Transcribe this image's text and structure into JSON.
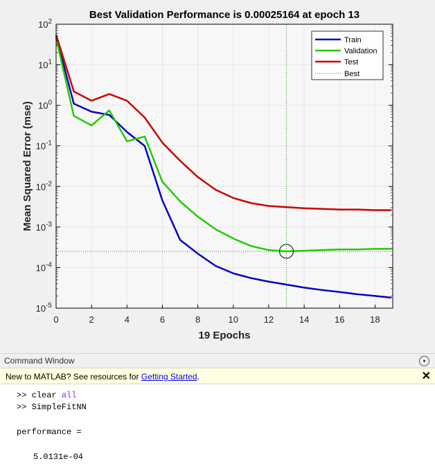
{
  "chart_data": {
    "type": "line",
    "title": "Best Validation Performance is 0.00025164 at epoch 13",
    "xlabel": "19 Epochs",
    "ylabel": "Mean Squared Error  (mse)",
    "xlim": [
      0,
      19
    ],
    "ylim": [
      1e-05,
      100
    ],
    "yscale": "log",
    "xticks": [
      0,
      2,
      4,
      6,
      8,
      10,
      12,
      14,
      16,
      18
    ],
    "yticks": [
      {
        "value": 100,
        "base": "10",
        "exp": "2"
      },
      {
        "value": 10,
        "base": "10",
        "exp": "1"
      },
      {
        "value": 1,
        "base": "10",
        "exp": "0"
      },
      {
        "value": 0.1,
        "base": "10",
        "exp": "-1"
      },
      {
        "value": 0.01,
        "base": "10",
        "exp": "-2"
      },
      {
        "value": 0.001,
        "base": "10",
        "exp": "-3"
      },
      {
        "value": 0.0001,
        "base": "10",
        "exp": "-4"
      },
      {
        "value": 1e-05,
        "base": "10",
        "exp": "-5"
      }
    ],
    "legend_position": "top-right",
    "x": [
      0,
      1,
      2,
      3,
      4,
      5,
      6,
      7,
      8,
      9,
      10,
      11,
      12,
      13,
      14,
      15,
      16,
      17,
      18,
      19
    ],
    "series": [
      {
        "name": "Train",
        "color": "#0000cc",
        "values": [
          50,
          1.1,
          0.7,
          0.58,
          0.22,
          0.1,
          0.0045,
          0.00048,
          0.00022,
          0.00011,
          7.2e-05,
          5.5e-05,
          4.5e-05,
          3.8e-05,
          3.2e-05,
          2.8e-05,
          2.5e-05,
          2.2e-05,
          2e-05,
          1.8e-05
        ]
      },
      {
        "name": "Validation",
        "color": "#22cc00",
        "values": [
          45,
          0.55,
          0.32,
          0.75,
          0.13,
          0.17,
          0.013,
          0.0043,
          0.0018,
          0.00088,
          0.00052,
          0.00034,
          0.00027,
          0.00025164,
          0.00026,
          0.00027,
          0.00028,
          0.00028,
          0.00029,
          0.00029
        ]
      },
      {
        "name": "Test",
        "color": "#cc0000",
        "values": [
          55,
          2.2,
          1.3,
          1.9,
          1.3,
          0.5,
          0.12,
          0.043,
          0.017,
          0.0083,
          0.0052,
          0.0039,
          0.0033,
          0.0031,
          0.0029,
          0.0028,
          0.0027,
          0.0027,
          0.0026,
          0.0026
        ]
      }
    ],
    "best": {
      "name": "Best",
      "epoch": 13,
      "value": 0.00025164,
      "color": "#228822"
    }
  },
  "command_window": {
    "title": "Command Window",
    "banner_text": "New to MATLAB? See resources for ",
    "banner_link": "Getting Started",
    "banner_suffix": ".",
    "close_glyph": "✕",
    "menu_glyph": "▾",
    "lines": {
      "cmd1_prompt": ">> clear ",
      "cmd1_arg": "all",
      "cmd2": ">> SimpleFitNN",
      "output_label": "performance =",
      "output_value": "5.0131e-04"
    }
  }
}
